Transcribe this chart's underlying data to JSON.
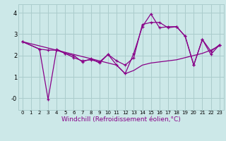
{
  "background_color": "#cce8e8",
  "grid_color": "#aacccc",
  "line_color": "#880088",
  "marker": "+",
  "xlabel": "Windchill (Refroidissement éolien,°C)",
  "xlabel_fontsize": 6.5,
  "xlim": [
    -0.5,
    23.5
  ],
  "ylim": [
    -0.55,
    4.4
  ],
  "ytick_positions": [
    0,
    1,
    2,
    3,
    4
  ],
  "ytick_labels": [
    "-0",
    "1",
    "2",
    "3",
    "4"
  ],
  "xtick_labels": [
    "0",
    "1",
    "2",
    "3",
    "4",
    "5",
    "6",
    "7",
    "8",
    "9",
    "10",
    "11",
    "12",
    "13",
    "14",
    "15",
    "16",
    "17",
    "18",
    "19",
    "20",
    "21",
    "22",
    "23"
  ],
  "series": [
    {
      "x": [
        0,
        1,
        2,
        3,
        4,
        5,
        6,
        7,
        8,
        9,
        10,
        11,
        12,
        13,
        14,
        15,
        16,
        17,
        18,
        19,
        20,
        21,
        22,
        23
      ],
      "y": [
        2.65,
        2.55,
        2.45,
        2.35,
        2.25,
        2.15,
        2.05,
        1.95,
        1.85,
        1.75,
        1.65,
        1.55,
        1.15,
        1.3,
        1.55,
        1.65,
        1.7,
        1.75,
        1.8,
        1.9,
        2.0,
        2.1,
        2.25,
        2.45
      ],
      "has_marker": false
    },
    {
      "x": [
        0,
        2,
        3,
        4,
        5,
        6,
        7,
        8,
        9,
        10,
        11,
        12,
        13,
        14,
        15,
        16,
        17,
        18,
        19,
        20,
        21,
        22,
        23
      ],
      "y": [
        2.65,
        2.3,
        2.25,
        2.25,
        2.1,
        1.9,
        1.75,
        1.8,
        1.7,
        2.05,
        1.55,
        1.15,
        2.1,
        3.35,
        3.95,
        3.3,
        3.35,
        3.35,
        2.9,
        1.55,
        2.75,
        2.05,
        2.5
      ],
      "has_marker": true
    },
    {
      "x": [
        0,
        2,
        3,
        4,
        5,
        6,
        7,
        8,
        9,
        10,
        11,
        12,
        13,
        14,
        15,
        16,
        17,
        18,
        19,
        20,
        21,
        22,
        23
      ],
      "y": [
        2.65,
        2.3,
        -0.05,
        2.3,
        2.1,
        2.0,
        1.7,
        1.85,
        1.65,
        2.05,
        1.75,
        1.55,
        1.9,
        3.45,
        3.55,
        3.55,
        3.3,
        3.35,
        2.9,
        1.55,
        2.75,
        2.2,
        2.5
      ],
      "has_marker": true
    }
  ]
}
